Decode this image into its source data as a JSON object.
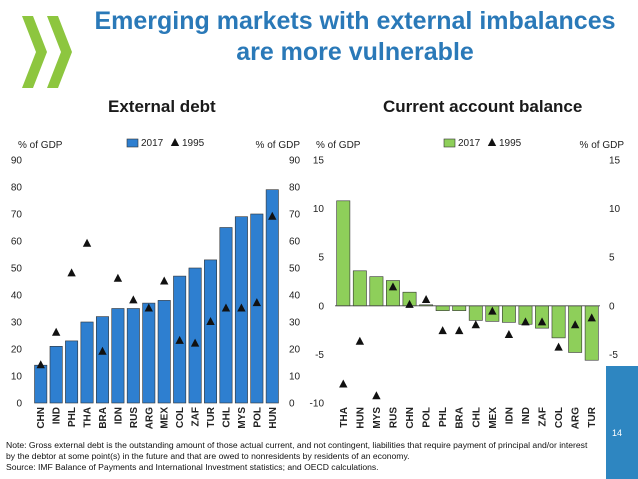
{
  "title": "Emerging markets with external imbalances are more vulnerable",
  "title_lines": [
    "Emerging markets with external imbalances",
    "are more vulnerable"
  ],
  "subtitles": {
    "left": "External debt",
    "right": "Current account balance"
  },
  "note": "Note: Gross external debt is the outstanding amount of those actual current, and not contingent, liabilities that require payment of principal and/or interest by the debtor at some point(s) in the future and that are owed to nonresidents by residents of an economy.",
  "source": "Source: IMF Balance of Payments and International Investment statistics; and OECD calculations.",
  "page_number": "14",
  "colors": {
    "title": "#2a79b8",
    "bar_debt": "#2e7fd0",
    "bar_cab": "#8ecf5a",
    "logo": "#8dc63f",
    "page_box": "#2e86c1"
  },
  "logo_icon": "oecd-chevron-logo",
  "chart_data": [
    {
      "type": "bar",
      "title": "External debt",
      "ylabel_left": "% of GDP",
      "ylabel_right": "% of GDP",
      "ylim": [
        0,
        90
      ],
      "yticks": [
        0,
        10,
        20,
        30,
        40,
        50,
        60,
        70,
        80,
        90
      ],
      "legend": [
        "2017",
        "1995"
      ],
      "legend_position": "top-center",
      "grid": false,
      "categories": [
        "CHN",
        "IND",
        "PHL",
        "THA",
        "BRA",
        "IDN",
        "RUS",
        "ARG",
        "MEX",
        "COL",
        "ZAF",
        "TUR",
        "CHL",
        "MYS",
        "POL",
        "HUN"
      ],
      "series": [
        {
          "name": "2017",
          "kind": "bar",
          "values": [
            14,
            21,
            23,
            30,
            32,
            35,
            35,
            37,
            38,
            47,
            50,
            53,
            65,
            69,
            70,
            79
          ]
        },
        {
          "name": "1995",
          "kind": "marker",
          "values": [
            14,
            26,
            48,
            59,
            19,
            46,
            38,
            35,
            45,
            23,
            22,
            30,
            35,
            35,
            37,
            69
          ]
        }
      ]
    },
    {
      "type": "bar",
      "title": "Current account balance",
      "ylabel_left": "% of GDP",
      "ylabel_right": "% of GDP",
      "ylim": [
        -10,
        15
      ],
      "yticks": [
        -10,
        -5,
        0,
        5,
        10,
        15
      ],
      "legend": [
        "2017",
        "1995"
      ],
      "legend_position": "top-center",
      "grid": false,
      "categories": [
        "THA",
        "HUN",
        "MYS",
        "RUS",
        "CHN",
        "POL",
        "PHL",
        "BRA",
        "CHL",
        "MEX",
        "IDN",
        "IND",
        "ZAF",
        "COL",
        "ARG",
        "TUR"
      ],
      "series": [
        {
          "name": "2017",
          "kind": "bar",
          "values": [
            10.8,
            3.6,
            3.0,
            2.6,
            1.4,
            0.1,
            -0.5,
            -0.5,
            -1.5,
            -1.6,
            -1.7,
            -1.9,
            -2.3,
            -3.3,
            -4.8,
            -5.6
          ]
        },
        {
          "name": "1995",
          "kind": "marker",
          "values": [
            -8.1,
            -3.7,
            -9.3,
            1.9,
            0.1,
            0.6,
            -2.6,
            -2.6,
            -2.0,
            -0.6,
            -3.0,
            -1.7,
            -1.7,
            -4.3,
            -2.0,
            -1.3
          ]
        }
      ]
    }
  ]
}
